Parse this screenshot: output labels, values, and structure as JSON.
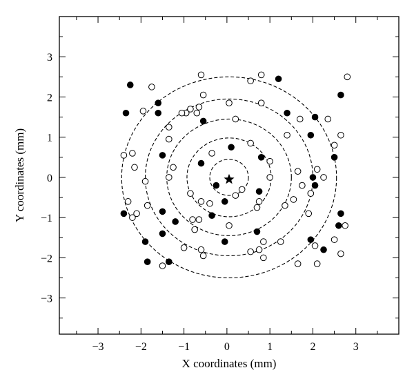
{
  "chart_data": {
    "type": "scatter",
    "xlabel": "X coordinates (mm)",
    "ylabel": "Y coordinates (mm)",
    "xlim": [
      -3.9,
      4.0
    ],
    "ylim": [
      -3.9,
      4.0
    ],
    "xticks": [
      -3,
      -2,
      -1,
      0,
      1,
      2,
      3
    ],
    "yticks": [
      -3,
      -2,
      -1,
      0,
      1,
      2,
      3
    ],
    "xtick_labels": [
      "−3",
      "−2",
      "−1",
      "0",
      "1",
      "2",
      "3"
    ],
    "ytick_labels": [
      "−3",
      "−2",
      "−1",
      "0",
      "1",
      "2",
      "3"
    ],
    "grid": false,
    "center": {
      "x": 0.05,
      "y": -0.05,
      "marker": "star"
    },
    "circles": [
      {
        "cx": 0.05,
        "cy": 0.0,
        "r": 0.45
      },
      {
        "cx": 0.05,
        "cy": 0.0,
        "r": 0.98
      },
      {
        "cx": 0.05,
        "cy": 0.0,
        "r": 1.45
      },
      {
        "cx": 0.05,
        "cy": 0.0,
        "r": 1.95
      },
      {
        "cx": 0.05,
        "cy": 0.0,
        "r": 2.5
      }
    ],
    "series": [
      {
        "marker": "filled",
        "points": [
          [
            -2.25,
            2.3
          ],
          [
            -2.35,
            1.6
          ],
          [
            -1.6,
            1.6
          ],
          [
            -1.6,
            1.85
          ],
          [
            -0.55,
            1.4
          ],
          [
            -1.5,
            0.55
          ],
          [
            -0.6,
            0.35
          ],
          [
            0.1,
            0.75
          ],
          [
            -0.25,
            -0.2
          ],
          [
            0.8,
            0.5
          ],
          [
            -0.05,
            -0.6
          ],
          [
            0.75,
            -0.35
          ],
          [
            -0.35,
            -0.95
          ],
          [
            -0.05,
            -1.6
          ],
          [
            0.7,
            -1.35
          ],
          [
            -1.2,
            -1.1
          ],
          [
            -1.5,
            -0.85
          ],
          [
            -2.4,
            -0.9
          ],
          [
            -1.5,
            -1.4
          ],
          [
            -1.9,
            -1.6
          ],
          [
            -1.85,
            -2.1
          ],
          [
            -1.35,
            -2.1
          ],
          [
            1.2,
            2.45
          ],
          [
            1.4,
            1.6
          ],
          [
            2.05,
            1.5
          ],
          [
            1.95,
            1.05
          ],
          [
            2.65,
            2.05
          ],
          [
            2.5,
            0.5
          ],
          [
            2.0,
            0.0
          ],
          [
            2.05,
            -0.2
          ],
          [
            1.95,
            -1.55
          ],
          [
            2.65,
            -0.9
          ],
          [
            2.6,
            -1.2
          ],
          [
            2.25,
            -1.8
          ]
        ]
      },
      {
        "marker": "open",
        "points": [
          [
            -0.6,
            2.55
          ],
          [
            0.8,
            2.55
          ],
          [
            2.8,
            2.5
          ],
          [
            -1.75,
            2.25
          ],
          [
            -0.55,
            2.05
          ],
          [
            0.55,
            2.4
          ],
          [
            0.05,
            1.85
          ],
          [
            0.8,
            1.85
          ],
          [
            -0.65,
            1.75
          ],
          [
            -0.85,
            1.7
          ],
          [
            -0.95,
            1.6
          ],
          [
            -0.7,
            1.6
          ],
          [
            -1.95,
            1.65
          ],
          [
            0.2,
            1.45
          ],
          [
            1.7,
            1.45
          ],
          [
            2.35,
            1.45
          ],
          [
            -1.35,
            1.25
          ],
          [
            1.4,
            1.05
          ],
          [
            2.65,
            1.05
          ],
          [
            -1.35,
            0.95
          ],
          [
            2.5,
            0.8
          ],
          [
            0.55,
            0.85
          ],
          [
            -0.35,
            0.6
          ],
          [
            -2.2,
            0.6
          ],
          [
            -2.4,
            0.55
          ],
          [
            1.0,
            0.4
          ],
          [
            -1.25,
            0.25
          ],
          [
            -2.15,
            0.25
          ],
          [
            -1.35,
            0.0
          ],
          [
            1.0,
            0.0
          ],
          [
            2.1,
            0.2
          ],
          [
            1.65,
            0.15
          ],
          [
            2.25,
            0.0
          ],
          [
            1.75,
            -0.2
          ],
          [
            -1.9,
            -0.1
          ],
          [
            -0.85,
            -0.4
          ],
          [
            0.35,
            -0.3
          ],
          [
            0.2,
            -0.45
          ],
          [
            0.75,
            -0.6
          ],
          [
            -0.6,
            -0.6
          ],
          [
            0.7,
            -0.75
          ],
          [
            -0.4,
            -0.65
          ],
          [
            1.55,
            -0.55
          ],
          [
            1.95,
            -0.4
          ],
          [
            -1.85,
            -0.7
          ],
          [
            -2.1,
            -0.9
          ],
          [
            -2.2,
            -1.0
          ],
          [
            -2.3,
            -0.6
          ],
          [
            -0.8,
            -1.05
          ],
          [
            -0.65,
            -1.05
          ],
          [
            0.05,
            -1.2
          ],
          [
            1.35,
            -0.7
          ],
          [
            1.9,
            -0.9
          ],
          [
            -0.75,
            -1.3
          ],
          [
            1.25,
            -1.6
          ],
          [
            0.85,
            -1.6
          ],
          [
            2.5,
            -1.55
          ],
          [
            2.75,
            -1.2
          ],
          [
            -1.0,
            -1.75
          ],
          [
            -0.6,
            -1.8
          ],
          [
            -0.55,
            -1.95
          ],
          [
            0.75,
            -1.8
          ],
          [
            0.55,
            -1.85
          ],
          [
            0.85,
            -2.0
          ],
          [
            2.05,
            -1.7
          ],
          [
            2.65,
            -1.9
          ],
          [
            -1.5,
            -2.2
          ],
          [
            1.65,
            -2.15
          ],
          [
            2.1,
            -2.15
          ],
          [
            -1.05,
            1.6
          ]
        ]
      }
    ]
  }
}
